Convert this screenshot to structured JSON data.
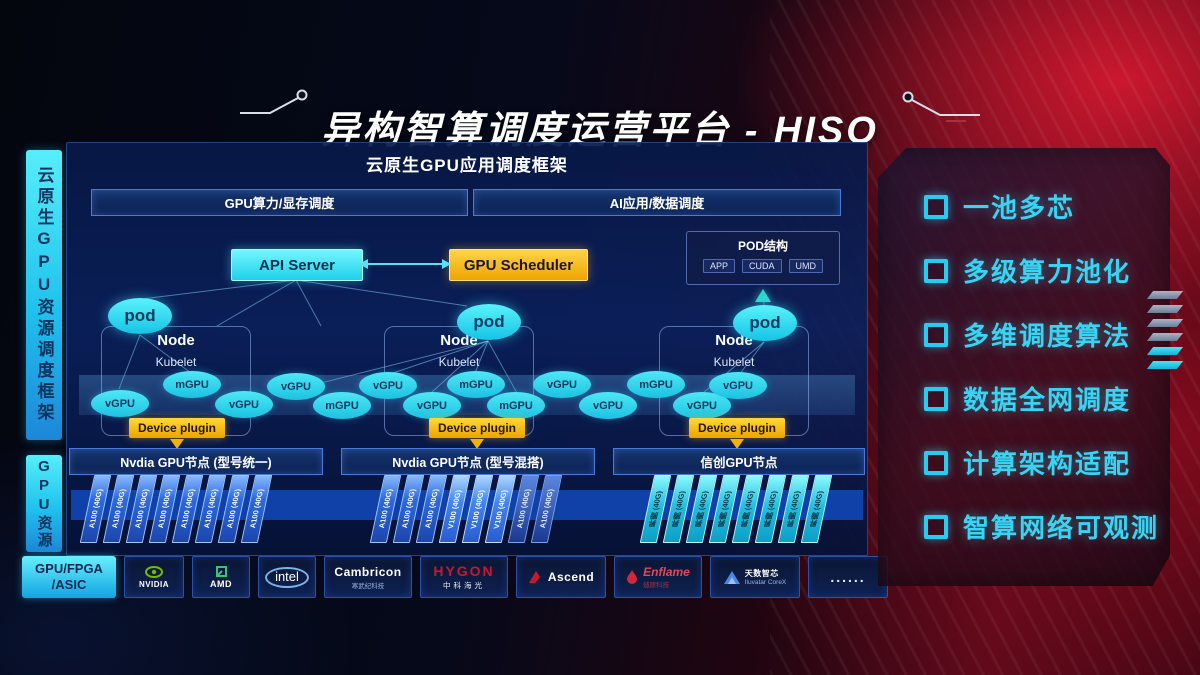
{
  "title": "异构智算调度运营平台 - HISO",
  "sidebar": {
    "top": "云原生GPU资源调度框架",
    "bottom": "GPU资源"
  },
  "framework": {
    "header": "云原生GPU应用调度框架",
    "sub_left": "GPU算力/显存调度",
    "sub_right": "AI应用/数据调度",
    "api_server": "API Server",
    "gpu_scheduler": "GPU Scheduler",
    "pod_box": {
      "title": "POD结构",
      "items": [
        "APP",
        "CUDA",
        "UMD"
      ]
    },
    "node": {
      "pod": "pod",
      "label": "Node",
      "kubelet": "Kubelet",
      "device_plugin": "Device plugin"
    },
    "gpu_ellipses": [
      "vGPU",
      "mGPU",
      "vGPU",
      "vGPU",
      "mGPU",
      "vGPU",
      "vGPU",
      "mGPU",
      "mGPU",
      "vGPU",
      "vGPU",
      "mGPU",
      "vGPU",
      "vGPU"
    ]
  },
  "gpu_rows": [
    {
      "header": "Nvdia GPU节点 (型号统一)",
      "cards": [
        "A100 (40G)",
        "A100 (40G)",
        "A100 (40G)",
        "A100 (40G)",
        "A100 (40G)",
        "A100 (40G)",
        "A100 (40G)",
        "A100 (40G)"
      ]
    },
    {
      "header": "Nvdia GPU节点 (型号混搭)",
      "cards": [
        "A100 (40G)",
        "A100 (40G)",
        "A100 (40G)",
        "V100 (40G)",
        "V100 (40G)",
        "V100 (40G)",
        "A100 (40G)",
        "A100 (40G)"
      ]
    },
    {
      "header": "信创GPU节点",
      "cards": [
        "昇腾 (40G)",
        "昇腾 (40G)",
        "昇腾 (40G)",
        "昇腾 (40G)",
        "昇腾 (40G)",
        "昇腾 (40G)",
        "昇腾 (40G)",
        "昇腾 (40G)"
      ]
    }
  ],
  "vendors": {
    "chip_label": "GPU/FPGA\n/ASIC",
    "items": [
      {
        "icon": "nvidia",
        "name": "NVIDIA"
      },
      {
        "icon": "amd",
        "name": "AMD"
      },
      {
        "icon": "intel",
        "name": "intel"
      },
      {
        "icon": "cambricon",
        "name": "Cambricon",
        "sub": "寒武纪科技"
      },
      {
        "icon": "hygon",
        "name": "HYGON",
        "sub": "中科海光"
      },
      {
        "icon": "ascend",
        "name": "Ascend"
      },
      {
        "icon": "enflame",
        "name": "Enflame",
        "sub": "燧原科技"
      },
      {
        "icon": "iluvatar",
        "name": "天数智芯",
        "sub": "Iluvatar CoreX"
      },
      {
        "icon": "dots",
        "name": "......"
      }
    ]
  },
  "features": [
    "一池多芯",
    "多级算力池化",
    "多维调度算法",
    "数据全网调度",
    "计算架构适配",
    "智算网络可观测"
  ],
  "colors": {
    "accent_cyan": "#35d8f0",
    "accent_yellow": "#f5b810",
    "card_blue": "#2a66d8",
    "panel_red": "#8a0a1e",
    "nvidia_green": "#76b900",
    "logo_red": "#c81830",
    "iluvatar_blue": "#4a86e8"
  }
}
